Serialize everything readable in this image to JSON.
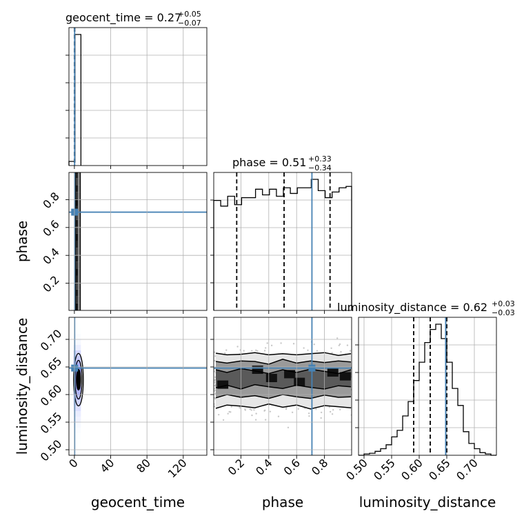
{
  "colors": {
    "truth": "#4682b4",
    "density": "#000000",
    "grid": "#b0b0b0",
    "points": "#c8c8c8"
  },
  "chart_data": {
    "type": "corner",
    "grid": true,
    "parameters": [
      "geocent_time",
      "phase",
      "luminosity_distance"
    ],
    "truths": {
      "geocent_time": 0.27,
      "phase": 0.71,
      "luminosity_distance": 0.648
    },
    "ranges": {
      "geocent_time": [
        -6,
        146
      ],
      "phase": [
        0.005,
        0.995
      ],
      "luminosity_distance": [
        0.49,
        0.74
      ]
    },
    "titles": [
      {
        "param": "geocent_time",
        "label": "geocent_time = ",
        "median": "0.27",
        "plus": "+0.05",
        "minus": "−0.07"
      },
      {
        "param": "phase",
        "label": "phase = ",
        "median": "0.51",
        "plus": "+0.33",
        "minus": "−0.34"
      },
      {
        "param": "luminosity_distance",
        "label": "luminosity_distance = ",
        "median": "0.62",
        "plus": "+0.03",
        "minus": "−0.03"
      }
    ],
    "ticks": {
      "geocent_time": [
        "0",
        "40",
        "80",
        "120"
      ],
      "phase": [
        "0.2",
        "0.4",
        "0.6",
        "0.8"
      ],
      "luminosity_distance": [
        "0.50",
        "0.55",
        "0.60",
        "0.65",
        "0.70"
      ]
    },
    "marginals": {
      "geocent_time": {
        "bin_edges": [
          -6,
          0.6,
          7.2
        ],
        "counts": [
          0.03,
          0.95
        ],
        "quantiles": [
          0.2,
          0.27,
          0.32
        ]
      },
      "phase": {
        "bin_edges": [
          0.005,
          0.055,
          0.105,
          0.155,
          0.205,
          0.255,
          0.305,
          0.355,
          0.405,
          0.455,
          0.505,
          0.555,
          0.605,
          0.655,
          0.705,
          0.755,
          0.805,
          0.855,
          0.905,
          0.955,
          0.995
        ],
        "counts": [
          0.78,
          0.74,
          0.81,
          0.75,
          0.8,
          0.8,
          0.86,
          0.82,
          0.86,
          0.81,
          0.87,
          0.83,
          0.87,
          0.87,
          0.93,
          0.85,
          0.8,
          0.84,
          0.87,
          0.88
        ],
        "quantiles": [
          0.17,
          0.51,
          0.84
        ]
      },
      "luminosity_distance": {
        "bin_edges": [
          0.49,
          0.5,
          0.51,
          0.52,
          0.53,
          0.54,
          0.55,
          0.56,
          0.57,
          0.58,
          0.59,
          0.6,
          0.61,
          0.62,
          0.63,
          0.64,
          0.65,
          0.66,
          0.67,
          0.68,
          0.69,
          0.7,
          0.71,
          0.72,
          0.73,
          0.74
        ],
        "counts": [
          0,
          0.01,
          0.015,
          0.03,
          0.05,
          0.08,
          0.14,
          0.19,
          0.3,
          0.41,
          0.57,
          0.71,
          0.86,
          0.96,
          1.0,
          0.89,
          0.71,
          0.51,
          0.38,
          0.18,
          0.09,
          0.05,
          0.02,
          0.01,
          0
        ],
        "quantiles": [
          0.59,
          0.62,
          0.65
        ]
      }
    },
    "joint": {
      "phase_vs_geocent_time": {
        "x_band": [
          0,
          7.2
        ],
        "note": "posterior concentrated in a narrow vertical band"
      },
      "luminosity_distance_vs_geocent_time": {
        "center": [
          3,
          0.627
        ],
        "contour_levels": 3
      },
      "luminosity_distance_vs_phase": {
        "contour_profiles": {
          "x": [
            0.02,
            0.1,
            0.2,
            0.3,
            0.4,
            0.5,
            0.6,
            0.7,
            0.8,
            0.9,
            0.99
          ],
          "outer_upper": [
            0.675,
            0.672,
            0.673,
            0.676,
            0.672,
            0.674,
            0.672,
            0.674,
            0.676,
            0.671,
            0.674
          ],
          "outer_lower": [
            0.575,
            0.581,
            0.579,
            0.576,
            0.583,
            0.577,
            0.581,
            0.574,
            0.58,
            0.578,
            0.576
          ],
          "middle_upper": [
            0.66,
            0.657,
            0.661,
            0.66,
            0.655,
            0.664,
            0.657,
            0.661,
            0.658,
            0.661,
            0.659
          ],
          "middle_lower": [
            0.594,
            0.6,
            0.595,
            0.598,
            0.593,
            0.6,
            0.596,
            0.593,
            0.599,
            0.595,
            0.596
          ],
          "inner_upper": [
            0.645,
            0.64,
            0.647,
            0.643,
            0.638,
            0.645,
            0.64,
            0.646,
            0.642,
            0.638,
            0.645
          ],
          "inner_lower": [
            0.612,
            0.617,
            0.61,
            0.618,
            0.614,
            0.611,
            0.617,
            0.613,
            0.61,
            0.616,
            0.614
          ]
        }
      }
    }
  }
}
